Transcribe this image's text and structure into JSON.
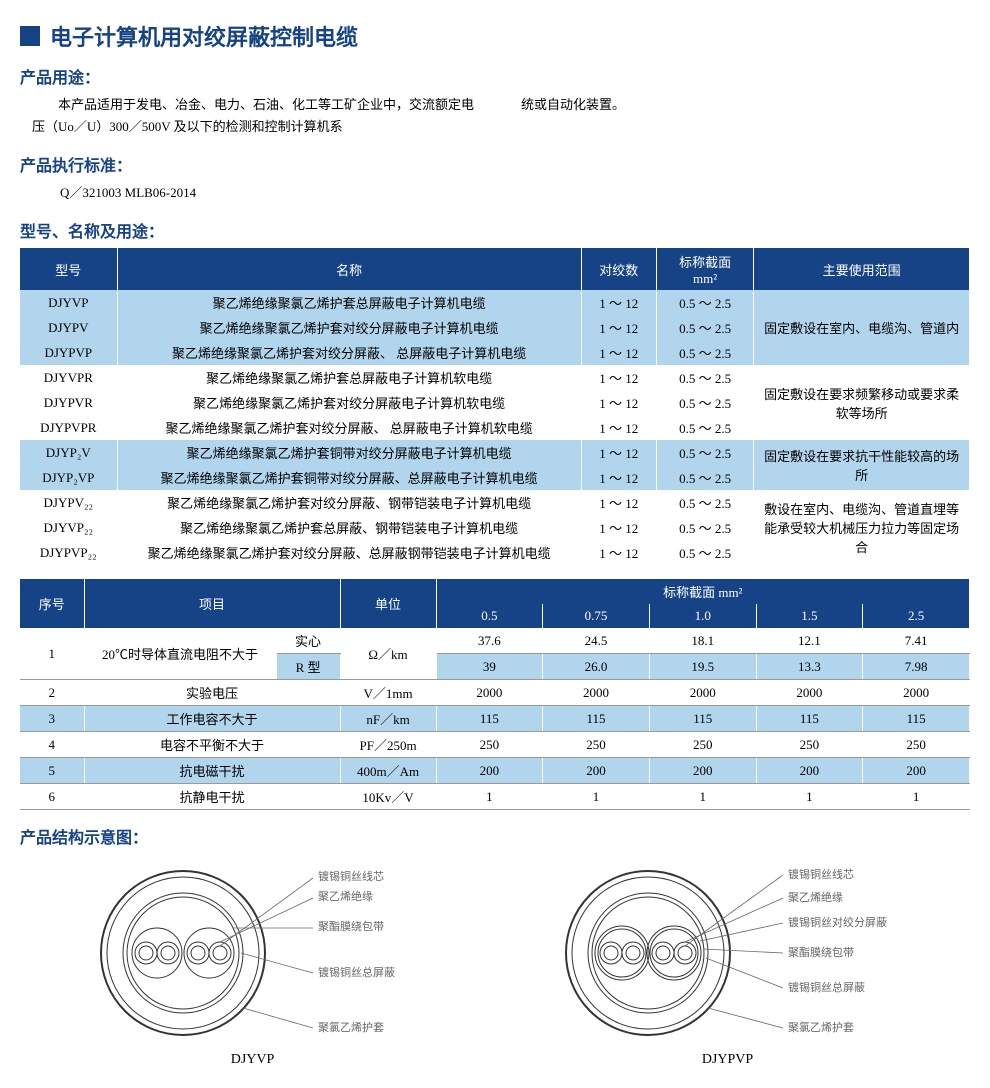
{
  "mainTitle": "电子计算机用对绞屏蔽控制电缆",
  "sections": {
    "usage": {
      "label": "产品用途：",
      "textLeft": "本产品适用于发电、冶金、电力、石油、化工等工矿企业中，交流额定电压（Uo／U）300／500V 及以下的检测和控制计算机系",
      "textRight": "统或自动化装置。"
    },
    "standard": {
      "label": "产品执行标准：",
      "text": "Q／321003  MLB06-2014"
    },
    "modelTable": {
      "label": "型号、名称及用途："
    },
    "structure": {
      "label": "产品结构示意图："
    }
  },
  "table1": {
    "headers": {
      "model": "型号",
      "name": "名称",
      "twist": "对绞数",
      "cross": "标称截面",
      "crossUnit": "mm²",
      "use": "主要使用范围"
    },
    "groups": [
      {
        "use": "固定敷设在室内、电缆沟、管道内",
        "bg": "row-blue",
        "rows": [
          {
            "model": "DJYVP",
            "name": "聚乙烯绝缘聚氯乙烯护套总屏蔽电子计算机电缆",
            "twist": "1 ～ 12",
            "cross": "0.5 ～ 2.5"
          },
          {
            "model": "DJYPV",
            "name": "聚乙烯绝缘聚氯乙烯护套对绞分屏蔽电子计算机电缆",
            "twist": "1 ～ 12",
            "cross": "0.5 ～ 2.5"
          },
          {
            "model": "DJYPVP",
            "name": "聚乙烯绝缘聚氯乙烯护套对绞分屏蔽、 总屏蔽电子计算机电缆",
            "twist": "1 ～ 12",
            "cross": "0.5 ～ 2.5"
          }
        ]
      },
      {
        "use": "固定敷设在要求频繁移动或要求柔软等场所",
        "bg": "row-white",
        "rows": [
          {
            "model": "DJYVPR",
            "name": "聚乙烯绝缘聚氯乙烯护套总屏蔽电子计算机软电缆",
            "twist": "1 ～ 12",
            "cross": "0.5 ～ 2.5"
          },
          {
            "model": "DJYPVR",
            "name": "聚乙烯绝缘聚氯乙烯护套对绞分屏蔽电子计算机软电缆",
            "twist": "1 ～ 12",
            "cross": "0.5 ～ 2.5"
          },
          {
            "model": "DJYPVPR",
            "name": "聚乙烯绝缘聚氯乙烯护套对绞分屏蔽、 总屏蔽电子计算机软电缆",
            "twist": "1 ～ 12",
            "cross": "0.5 ～ 2.5"
          }
        ]
      },
      {
        "use": "固定敷设在要求抗干性能较高的场所",
        "bg": "row-blue",
        "rows": [
          {
            "model": "DJYP₂V",
            "name": "聚乙烯绝缘聚氯乙烯护套铜带对绞分屏蔽电子计算机电缆",
            "twist": "1 ～ 12",
            "cross": "0.5 ～ 2.5"
          },
          {
            "model": "DJYP₂VP",
            "name": "聚乙烯绝缘聚氯乙烯护套铜带对绞分屏蔽、总屏蔽电子计算机电缆",
            "twist": "1 ～ 12",
            "cross": "0.5 ～ 2.5"
          }
        ]
      },
      {
        "use": "敷设在室内、电缆沟、管道直埋等能承受较大机械压力拉力等固定场合",
        "bg": "row-white",
        "rows": [
          {
            "model": "DJYPV₂₂",
            "name": "聚乙烯绝缘聚氯乙烯护套对绞分屏蔽、钢带铠装电子计算机电缆",
            "twist": "1 ～ 12",
            "cross": "0.5 ～ 2.5"
          },
          {
            "model": "DJYVP₂₂",
            "name": "聚乙烯绝缘聚氯乙烯护套总屏蔽、钢带铠装电子计算机电缆",
            "twist": "1 ～ 12",
            "cross": "0.5 ～ 2.5"
          },
          {
            "model": "DJYPVP₂₂",
            "name": "聚乙烯绝缘聚氯乙烯护套对绞分屏蔽、总屏蔽钢带铠装电子计算机电缆",
            "twist": "1 ～ 12",
            "cross": "0.5 ～ 2.5"
          }
        ]
      }
    ]
  },
  "table2": {
    "headers": {
      "seq": "序号",
      "item": "项目",
      "unit": "单位",
      "cross": "标称截面 mm²",
      "cols": [
        "0.5",
        "0.75",
        "1.0",
        "1.5",
        "2.5"
      ]
    },
    "rows": [
      {
        "seq": "1",
        "item": "20℃时导体直流电阻不大于",
        "sub": [
          {
            "subitem": "实心",
            "unit": "Ω／km",
            "vals": [
              "37.6",
              "24.5",
              "18.1",
              "12.1",
              "7.41"
            ],
            "bg": "row-white"
          },
          {
            "subitem": "R 型",
            "unit": "",
            "vals": [
              "39",
              "26.0",
              "19.5",
              "13.3",
              "7.98"
            ],
            "bg": "row-blue"
          }
        ]
      },
      {
        "seq": "2",
        "item": "实验电压",
        "unit": "V／1mm",
        "vals": [
          "2000",
          "2000",
          "2000",
          "2000",
          "2000"
        ],
        "bg": "row-white"
      },
      {
        "seq": "3",
        "item": "工作电容不大于",
        "unit": "nF／km",
        "vals": [
          "115",
          "115",
          "115",
          "115",
          "115"
        ],
        "bg": "row-blue"
      },
      {
        "seq": "4",
        "item": "电容不平衡不大于",
        "unit": "PF／250m",
        "vals": [
          "250",
          "250",
          "250",
          "250",
          "250"
        ],
        "bg": "row-white"
      },
      {
        "seq": "5",
        "item": "抗电磁干扰",
        "unit": "400m／Am",
        "vals": [
          "200",
          "200",
          "200",
          "200",
          "200"
        ],
        "bg": "row-blue"
      },
      {
        "seq": "6",
        "item": "抗静电干扰",
        "unit": "10Kv／V",
        "vals": [
          "1",
          "1",
          "1",
          "1",
          "1"
        ],
        "bg": "row-white"
      }
    ]
  },
  "diagrams": {
    "left": {
      "title": "DJYVP",
      "labels": [
        "镀锡铜丝线芯",
        "聚乙烯绝缘",
        "聚酯膜绕包带",
        "镀锡铜丝总屏蔽",
        "聚氯乙烯护套"
      ]
    },
    "right": {
      "title": "DJYPVP",
      "labels": [
        "镀锡铜丝线芯",
        "聚乙烯绝缘",
        "镀锡铜丝对绞分屏蔽",
        "聚酯膜绕包带",
        "镀锡铜丝总屏蔽",
        "聚氯乙烯护套"
      ]
    }
  },
  "colors": {
    "brand": "#164386",
    "blueRow": "#b0d5ed"
  }
}
